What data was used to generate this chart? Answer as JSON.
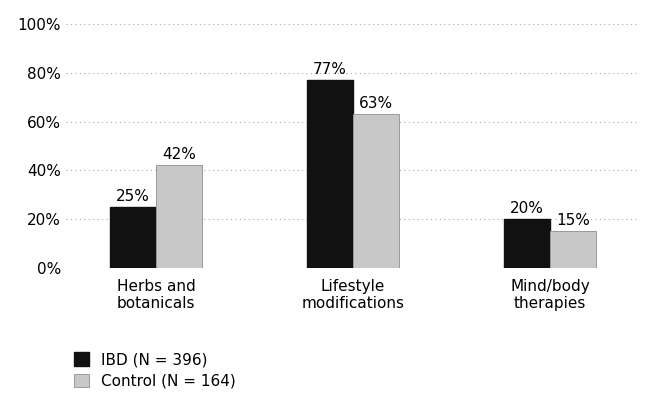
{
  "categories": [
    "Herbs and\nbotanicals",
    "Lifestyle\nmodifications",
    "Mind/body\ntherapies"
  ],
  "ibd_values": [
    0.25,
    0.77,
    0.2
  ],
  "control_values": [
    0.42,
    0.63,
    0.15
  ],
  "ibd_labels": [
    "25%",
    "77%",
    "20%"
  ],
  "control_labels": [
    "42%",
    "63%",
    "15%"
  ],
  "ibd_color": "#111111",
  "control_color": "#c8c8c8",
  "control_edge_color": "#999999",
  "ibd_legend": "IBD (N = 396)",
  "control_legend": "Control (N = 164)",
  "ylim": [
    0,
    1.05
  ],
  "yticks": [
    0.0,
    0.2,
    0.4,
    0.6,
    0.8,
    1.0
  ],
  "ytick_labels": [
    "0%",
    "20%",
    "40%",
    "60%",
    "80%",
    "100%"
  ],
  "bar_width": 0.28,
  "background_color": "#ffffff",
  "grid_color": "#aaaaaa",
  "font_size_ticks": 11,
  "font_size_labels": 11,
  "font_size_bar_labels": 11,
  "font_size_legend": 11
}
